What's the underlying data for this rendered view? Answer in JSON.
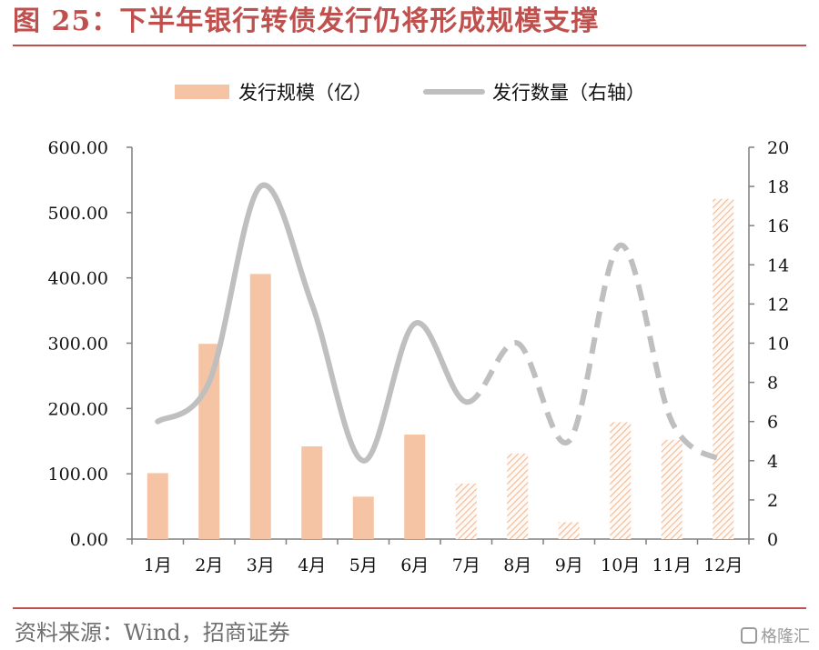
{
  "figure": {
    "title": "图 25：下半年银行转债发行仍将形成规模支撑",
    "source": "资料来源：Wind，招商证券",
    "watermark": "格隆汇"
  },
  "chart_data": {
    "type": "bar",
    "categories": [
      "1月",
      "2月",
      "3月",
      "4月",
      "5月",
      "6月",
      "7月",
      "8月",
      "9月",
      "10月",
      "11月",
      "12月"
    ],
    "series": [
      {
        "name": "发行规模（亿）",
        "type": "bar",
        "axis": "left",
        "values": [
          101,
          299,
          406,
          142,
          65,
          160,
          85,
          131,
          26,
          179,
          152,
          521
        ],
        "style": [
          "solid",
          "solid",
          "solid",
          "solid",
          "solid",
          "solid",
          "hatched",
          "hatched",
          "hatched",
          "hatched",
          "hatched",
          "hatched"
        ]
      },
      {
        "name": "发行数量（右轴）",
        "type": "line",
        "axis": "right",
        "values": [
          6,
          8,
          18,
          12,
          4,
          11,
          7,
          10,
          5,
          15,
          6,
          4
        ],
        "style": [
          "solid",
          "solid",
          "solid",
          "solid",
          "solid",
          "solid",
          "solid",
          "dashed",
          "dashed",
          "dashed",
          "dashed",
          "dashed"
        ]
      }
    ],
    "y_left": {
      "ticks": [
        "0.00",
        "100.00",
        "200.00",
        "300.00",
        "400.00",
        "500.00",
        "600.00"
      ],
      "ylim": [
        0,
        600
      ]
    },
    "y_right": {
      "ticks": [
        "0",
        "2",
        "4",
        "6",
        "8",
        "10",
        "12",
        "14",
        "16",
        "18",
        "20"
      ],
      "ylim": [
        0,
        20
      ]
    },
    "legend_position": "top",
    "grid": false,
    "colors": {
      "bar": "#f5c4a4",
      "line": "#bfbfbf",
      "axis": "#7f7f7f",
      "accent": "#c0504d"
    }
  }
}
